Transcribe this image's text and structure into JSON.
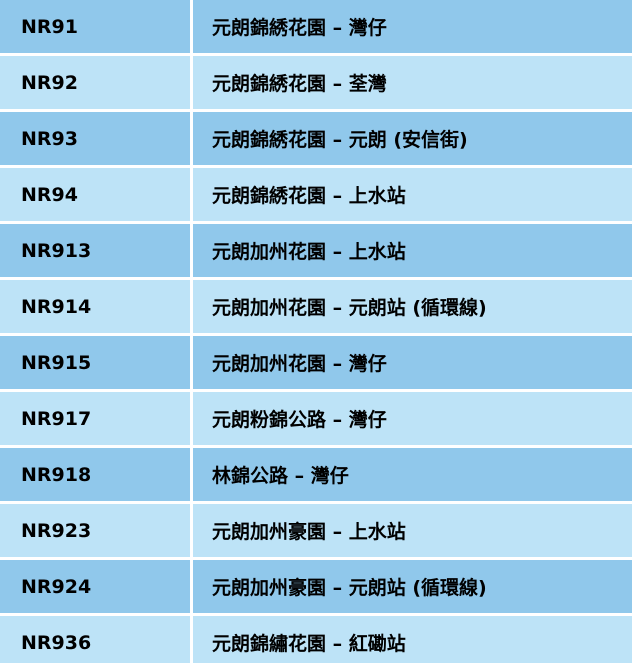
{
  "table": {
    "name": "residents-bus-routes",
    "columns": [
      {
        "key": "route",
        "label": "route-number"
      },
      {
        "key": "description",
        "label": "route-origin-destination"
      }
    ],
    "rows": [
      {
        "route": "NR91",
        "description": "元朗錦綉花園 – 灣仔"
      },
      {
        "route": "NR92",
        "description": "元朗錦綉花園 – 荃灣"
      },
      {
        "route": "NR93",
        "description": "元朗錦綉花園 – 元朗 (安信街)"
      },
      {
        "route": "NR94",
        "description": "元朗錦綉花園 – 上水站"
      },
      {
        "route": "NR913",
        "description": "元朗加州花園 – 上水站"
      },
      {
        "route": "NR914",
        "description": "元朗加州花園 – 元朗站 (循環線)"
      },
      {
        "route": "NR915",
        "description": "元朗加州花園 – 灣仔"
      },
      {
        "route": "NR917",
        "description": "元朗粉錦公路 – 灣仔"
      },
      {
        "route": "NR918",
        "description": "林錦公路 – 灣仔"
      },
      {
        "route": "NR923",
        "description": "元朗加州豪園 – 上水站"
      },
      {
        "route": "NR924",
        "description": "元朗加州豪園 – 元朗站 (循環線)"
      },
      {
        "route": "NR936",
        "description": "元朗錦繡花園 – 紅磡站"
      }
    ],
    "colors": {
      "row_dark": "#90C8EB",
      "row_light": "#BDE3F7",
      "separator": "#FFFFFF",
      "text": "#000000"
    }
  }
}
